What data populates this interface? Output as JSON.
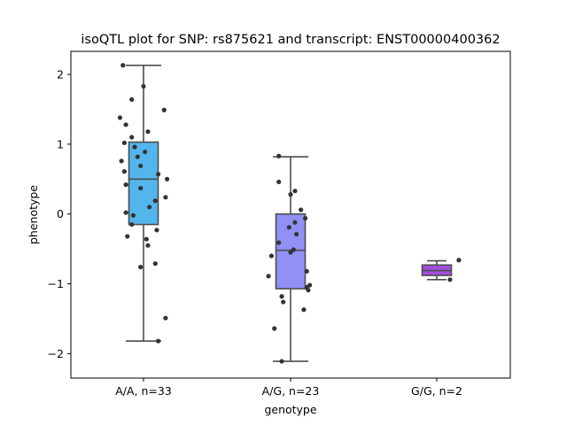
{
  "chart_data": {
    "type": "box",
    "title": "isoQTL plot for SNP: rs875621 and transcript: ENST00000400362",
    "xlabel": "genotype",
    "ylabel": "phenotype",
    "ylim": [
      -2.35,
      2.33
    ],
    "yticks": [
      2,
      1,
      0,
      -1,
      -2
    ],
    "ytick_labels": [
      "2",
      "1",
      "0",
      "−1",
      "−2"
    ],
    "categories": [
      "A/A, n=33",
      "A/G, n=23",
      "G/G, n=2"
    ],
    "grid": false,
    "colors": {
      "A/A": "#52b6ed",
      "A/G": "#9090f5",
      "G/G": "#a14ee0",
      "box_edge": "#4d4d4d",
      "points": "#333333"
    },
    "boxes": [
      {
        "category": "A/A, n=33",
        "whisker_low": -1.82,
        "q1": -0.15,
        "median": 0.5,
        "q3": 1.03,
        "whisker_high": 2.13,
        "points": [
          [
            -0.14,
            2.13
          ],
          [
            0.0,
            1.83
          ],
          [
            -0.08,
            1.64
          ],
          [
            0.14,
            1.49
          ],
          [
            -0.16,
            1.38
          ],
          [
            -0.12,
            1.28
          ],
          [
            0.03,
            1.18
          ],
          [
            -0.08,
            1.1
          ],
          [
            -0.13,
            1.02
          ],
          [
            -0.06,
            0.96
          ],
          [
            0.01,
            0.89
          ],
          [
            -0.04,
            0.82
          ],
          [
            -0.15,
            0.76
          ],
          [
            -0.02,
            0.69
          ],
          [
            -0.13,
            0.61
          ],
          [
            0.1,
            0.57
          ],
          [
            0.16,
            0.5
          ],
          [
            -0.12,
            0.42
          ],
          [
            -0.02,
            0.37
          ],
          [
            0.15,
            0.24
          ],
          [
            0.08,
            0.19
          ],
          [
            0.04,
            0.1
          ],
          [
            -0.12,
            0.02
          ],
          [
            -0.07,
            -0.02
          ],
          [
            -0.08,
            -0.15
          ],
          [
            0.09,
            -0.23
          ],
          [
            -0.11,
            -0.32
          ],
          [
            0.02,
            -0.36
          ],
          [
            0.03,
            -0.45
          ],
          [
            -0.02,
            -0.76
          ],
          [
            0.08,
            -0.71
          ],
          [
            0.15,
            -1.49
          ],
          [
            0.1,
            -1.82
          ]
        ]
      },
      {
        "category": "A/G, n=23",
        "whisker_low": -2.11,
        "q1": -1.07,
        "median": -0.52,
        "q3": 0.0,
        "whisker_high": 0.82,
        "points": [
          [
            -0.08,
            0.83
          ],
          [
            -0.08,
            0.46
          ],
          [
            0.03,
            0.33
          ],
          [
            0.0,
            0.28
          ],
          [
            0.07,
            0.06
          ],
          [
            0.1,
            -0.06
          ],
          [
            0.03,
            -0.12
          ],
          [
            -0.01,
            -0.19
          ],
          [
            0.04,
            -0.29
          ],
          [
            -0.08,
            -0.41
          ],
          [
            0.02,
            -0.51
          ],
          [
            0.0,
            -0.55
          ],
          [
            -0.13,
            -0.6
          ],
          [
            0.11,
            -0.82
          ],
          [
            -0.15,
            -0.89
          ],
          [
            0.13,
            -1.02
          ],
          [
            0.11,
            -1.05
          ],
          [
            0.12,
            -1.09
          ],
          [
            -0.06,
            -1.18
          ],
          [
            -0.05,
            -1.26
          ],
          [
            0.09,
            -1.37
          ],
          [
            -0.11,
            -1.64
          ],
          [
            -0.06,
            -2.11
          ]
        ]
      },
      {
        "category": "G/G, n=2",
        "whisker_low": -0.94,
        "q1": -0.88,
        "median": -0.81,
        "q3": -0.73,
        "whisker_high": -0.67,
        "points": [
          [
            0.15,
            -0.66
          ],
          [
            0.09,
            -0.94
          ]
        ]
      }
    ]
  }
}
